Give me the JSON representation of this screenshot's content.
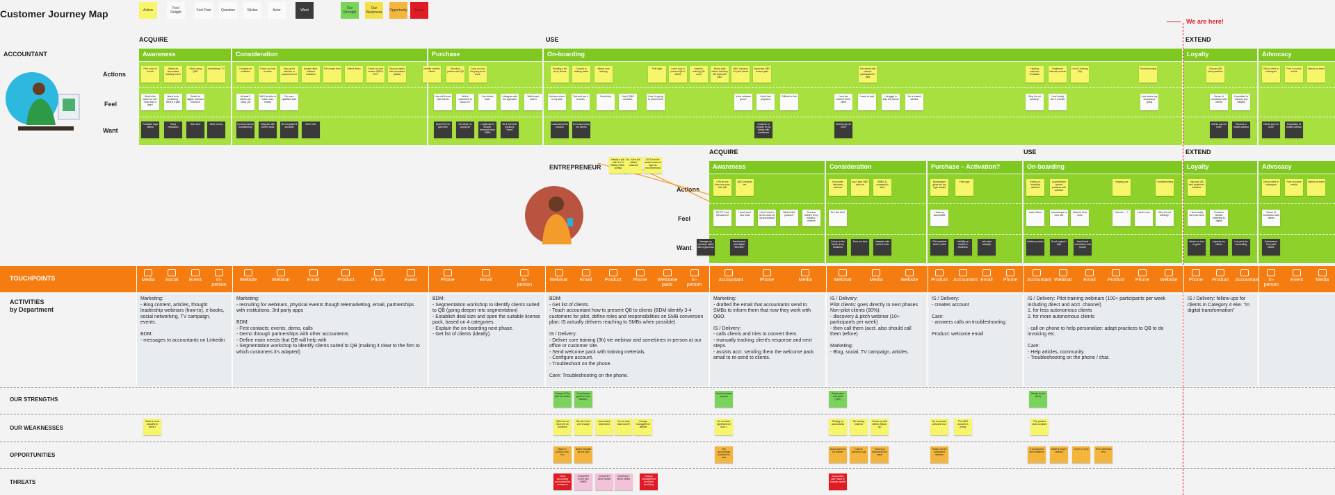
{
  "title": "Customer Journey Map",
  "legend": [
    {
      "label": "Action",
      "color": "#f7f56a"
    },
    {
      "label": "Feel Delight",
      "color": "#fafafa"
    },
    {
      "label": "Feel Pain",
      "color": "#fafafa"
    },
    {
      "label": "Question",
      "color": "#fafafa"
    },
    {
      "label": "Sticker",
      "color": "#fafafa"
    },
    {
      "label": "Actor",
      "color": "#fafafa"
    },
    {
      "label": "Want",
      "color": "#3a3a3a"
    },
    {
      "label": "Our Strength",
      "color": "#7ad35a"
    },
    {
      "label": "Our Weakness",
      "color": "#f4e04c"
    },
    {
      "label": "Opportunity",
      "color": "#f4b53c"
    },
    {
      "label": "Threat",
      "color": "#e01b24"
    }
  ],
  "we_are_here": "We are here!",
  "phases": {
    "acquire": "ACQUIRE",
    "use": "USE",
    "extend": "EXTEND"
  },
  "roles": {
    "accountant": "ACCOUNTANT",
    "entrepreneur": "ENTREPRENEUR"
  },
  "rows": {
    "actions": "Actions",
    "feel": "Feel",
    "want": "Want"
  },
  "accountant_stages": [
    "Awareness",
    "Consideration",
    "Purchase",
    "On-boarding",
    "Loyalty",
    "Advocacy"
  ],
  "entrepreneur_stages": [
    "Awareness",
    "Consideration",
    "Purchase – Activation?",
    "On-boarding",
    "Loyalty",
    "Advocacy"
  ],
  "entrepreneur_phases": {
    "acquire": "ACQUIRE",
    "use": "USE",
    "extend": "EXTEND"
  },
  "sections": {
    "touchpoints": "TOUCHPOINTS",
    "activities": "ACTIVITIES",
    "activities_sub": "by Department",
    "strengths": "OUR STRENGTHS",
    "weaknesses": "OUR WEAKNESSES",
    "opportunities": "OPPORTUNITIES",
    "threats": "THREATS"
  },
  "touchpoints": [
    {
      "items": [
        "Media",
        "Social",
        "Event",
        "In-person"
      ]
    },
    {
      "items": [
        "Website",
        "Webinar",
        "Email",
        "Product",
        "Phone",
        "Event"
      ]
    },
    {
      "items": [
        "Phone",
        "Email",
        "In-person"
      ]
    },
    {
      "items": [
        "Webinar",
        "Email",
        "Product",
        "Phone",
        "Welcome pack",
        "In-person"
      ]
    },
    {
      "items": [
        "Accountant",
        "Phone",
        "Media"
      ]
    },
    {
      "items": [
        "Webinar",
        "Media",
        "Website"
      ]
    },
    {
      "items": [
        "Product",
        "Accountant",
        "Email",
        "Phone"
      ]
    },
    {
      "items": [
        "Accountant",
        "Webinar",
        "Email",
        "Product",
        "Phone",
        "Website"
      ]
    },
    {
      "items": [
        "Phone",
        "Product",
        "Accountant"
      ]
    },
    {
      "items": [
        "In-person",
        "Event",
        "Media"
      ]
    }
  ],
  "activities": [
    "Marketing:\n- Blog content, articles, thought leadership webinars (how-to), e-books, social networking, TV campaign, events.\n\nBDM:\n- messages to accountants on Linkedin",
    "Marketing:\n- recruiting  for webinars, physical events though telemarketing, email, partnerships with institutions, 3rd party apps\n\nBDM:\n- First contacts: events, demo, calls\n- Demo through partnerships with other accountents\n- Define main needs that QB will help with\n- Segmentation workshop to identify clients suited to QB (making it clear to the firm to which customers it's adapted)",
    "BDM:\n- Segmentation workshop to identify clients suited to QB (going deeper into segmentation)\n- Establish deal size and open the suitable license pack, based on 4 categories.\n- Explain the on-boarding next phase.\n- Get list of clients (ideally).",
    "BDM:\n- Get list of clients.\n- Teach accountant how to present QB to clients (BDM identify 3-4 customers for pilot, define roles and responsibilities on SMB conversion plan: IS actually delivers reaching to SMBs when possible).\n\nIS / Delivery:\n- Deliver core training (3h) vie webinar and sometimes in-person at our office or customer site.\n- Send welcome pack with training meterials.\n- Configure account.\n- Troubleshoot on the phone.\n\nCare: Troubleshooting on the phone.",
    "Marketing:\n- drafted the email that accountants send to SMBs to inform them that now they work with QBO.\n\nIS / Delivery:\n- calls clients and tries to convert them.\n- manually tracking client's response and next steps.\n- assists acct. sending them the welcome pack email to re-send to clients.",
    "IS / Delivery:\nPilot clients: goes directly to next phases\nNon-pilot clients (90%):\n- discovery & pitch webinar (10+ participants per week)\n- then call them (acct. also should call them before)\n\nMarketing:\n- Blog, social, TV campaign, articles.",
    "IS / Delivery:\n- creates account\n\nCare:\n- answers calls on troubleshooting.\n\nProduct: welcome email",
    "IS / Delivery: Pilot training webinars (100+ participants per week including direct and acct. channel)\n1. for less autonomous clients\n2. for more autonomous clients\n\n- call on phone to help personalize: adapt practices to QB to do invoicing etc.\n\nCare:\n- Help articles, community.\n- Troubleshooting on the phone / chat.",
    "IS / Delivery: follow-ups for clients in Category 4 eke. \"In digital transformation\"",
    ""
  ],
  "stickies": {
    "acc_actions": [
      "Peer word of mouth",
      "Attend an accountant industry event",
      "Client using QBO",
      "Advertising / TV",
      "Compare on websites",
      "Check out how it works",
      "Sign-up for webinar or physical event",
      "Accept client-initiated invitation",
      "Fill contact form",
      "Attend demo",
      "Check our last version QBOA 2017",
      "Discuss needs with consultant (Sales)",
      "Identify suitable clients",
      "Decide to partner with QB",
      "Carry on how it's going to be done",
      "Sending a list of my clients",
      "Commit to training dates",
      "Attend core training",
      "First login",
      "Learn how to present QB to clients",
      "Invest in training (3h core)",
      "Inform pilot clients that they will work with QBO",
      "QBO contacts 3-4 pilot clients",
      "Supervise QBO contact plan",
      "Get clients that haven't participated in pilot",
      "Hearing customer feedback",
      "Implement internal process",
      "Level 2 training (2h)",
      "Troubleshooting",
      "Discuss QB best practices",
      "Talk to client or colleagues",
      "Post on social media",
      "Attend an event"
    ],
    "acc_feel": [
      "What's the value for me? How does it help?",
      "Need to do something - there's a pain",
      "Switch to digital, embrace new tech",
      "At least 3 clients are using QB",
      "Will I be able to make more money",
      "Do more qualified work",
      "How will it work with clients",
      "Which customers to focus on?",
      "Can clients trust?",
      "I disagree with the approach",
      "Well-timed, hate it",
      "Not sure where is my data",
      "Test and see if it works",
      "Good help",
      "Like it QBO interface",
      "How I'm going to present this",
      "Is the software good?",
      "I don't feel prepared",
      "Difficult to find",
      "I see the interest of the client",
      "I want to wait",
      "I struggle to train the clients",
      "I'm a trusted advisor",
      "Why it's not working?",
      "I don't really see if it works",
      "I see where my business is going",
      "Sense of connection with clients",
      "Committed to honesty and integrity"
    ],
    "acc_want": [
      "Profitable loyal clients",
      "Good reputation",
      "Gain time",
      "More money",
      "Do less manual bookkeeping",
      "Integrate with current tools",
      "Be compliant & accurate",
      "More time",
      "Quick ROI on gain time",
      "Get what I'm paying for",
      "Legitimate to answer demands from SMBs",
      "Be in the tech solutions \"trend\"",
      "Understand this product",
      "On-board easily my clients",
      "Continue to provide to my clients with confidence",
      "Clients pay me more",
      "Clients pay me more",
      "Become a trusted advisor",
      "Clients pay me more",
      "Reputation of trusted advisor"
    ],
    "ent_actions": [
      "CPA tell me they now work with QB",
      "QBO contacts me",
      "Encounter discovery webinar",
      "Acct. then QBO calls me",
      "SMBS-11 comparison sites",
      "Bookkeeper gives me my login details",
      "First login",
      "Follow on-boarding webinar",
      "Acquire/learn current practices with software",
      "Ongoing use",
      "Troubleshooting",
      "Discover QB best practices / mistakes",
      "Talk to client or colleagues",
      "Post on social media",
      "Attend an event"
    ],
    "ent_feel": [
      "PILOT: Cool QB calls me",
      "I don't need new tools",
      "I don't want to do the work for my accountant",
      "What is this product?",
      "Process doesn't fit my industry / network",
      "Do I like this?",
      "I trust my accountant",
      "Lack of time",
      "Immersing in a new tool",
      "Ideas to hear more",
      "How do I ...?",
      "Hard to use",
      "Why it's not working?",
      "I don't really use it as much",
      "Freedom without switching to digital",
      "Sense of connection with clients"
    ],
    "ent_want": [
      "Manage my business better with a good tool",
      "Dashboards and digital \"direction\"",
      "Focus on the future of my business",
      "Save me time",
      "Integrate with current tools",
      "CPA available when I need",
      "Visibility on health of business",
      "Let's start already!",
      "Intuitive product",
      "Good support / help",
      "Avoid bank connection and import",
      "Advice on how to grow",
      "Impress my clients",
      "Low price for accounting",
      "Deliverance from past failure"
    ],
    "callouts": [
      "Initially a pilot with 3 to 4 SMBs (Official clients)",
      "No, in the bill, official channels",
      "BUT that the dealer?/sales in type as recommended"
    ],
    "strengths": [
      "Product (F2b) with its content",
      "Cloud based great UX and features",
      "Good customer support",
      "Responsive and quick (TDX)",
      "Ready to join (free)"
    ],
    "weaknesses": [
      "What is more valuable to demo?",
      "QBO do not have yet all functions",
      "We don't do it well enough",
      "Accountant dependent",
      "Do not rank data via API",
      "Change management difficult",
      "Do not have specific/more than 1",
      "Relying on accountants",
      "No training material",
      "Follow up with clients (follow-up)",
      "No in-product welcome tour",
      "The QBO account is empty",
      "The product looks complex"
    ],
    "opportunities": [
      "Make in-product how-to's",
      "Better tutorials for the pilot",
      "The accountants must be the first",
      "Accountant not be adviser",
      "Call me discovery call",
      "Training & discovery next steps",
      "Reach out the automated webinar",
      "A product-led new initiatives",
      "Make a proper cleanup",
      "A form of help",
      "1FOs webinars first"
    ],
    "threats": [
      "Client accounting accountant-led resistance",
      "CONVERT EXISTING SMBS",
      "CONVERT NEW SMBS",
      "DISTRACT NEW SMBS",
      "Change management for switch providing",
      "Accountant don't want to change agents"
    ]
  }
}
